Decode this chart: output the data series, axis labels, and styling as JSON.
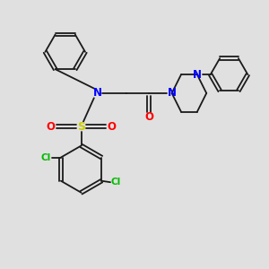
{
  "bg_color": "#e0e0e0",
  "bond_color": "#1a1a1a",
  "N_color": "#0000ff",
  "O_color": "#ff0000",
  "S_color": "#cccc00",
  "Cl_color": "#00bb00",
  "figsize": [
    3.0,
    3.0
  ],
  "dpi": 100,
  "xlim": [
    0,
    10
  ],
  "ylim": [
    0,
    10
  ]
}
